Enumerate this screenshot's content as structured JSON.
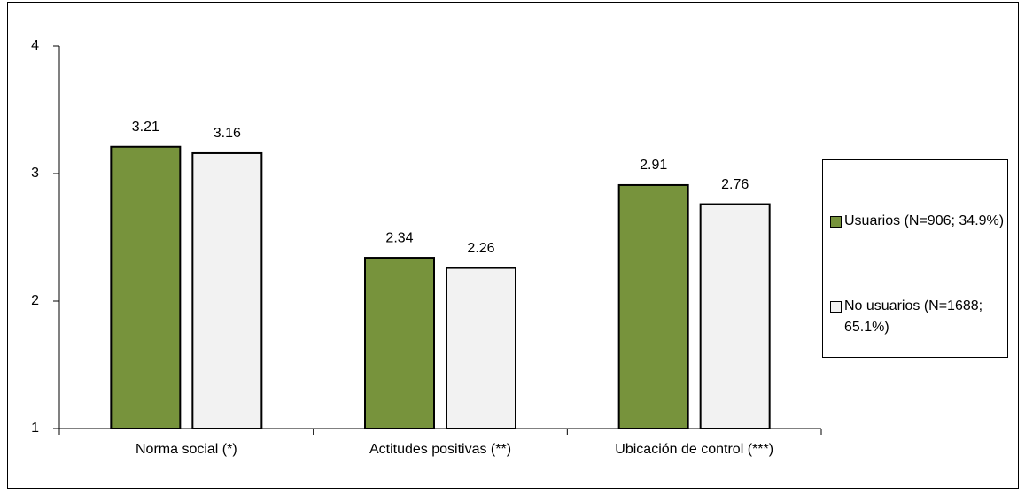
{
  "chart_data": {
    "type": "bar",
    "categories": [
      "Norma social (*)",
      "Actitudes positivas (**)",
      "Ubicación de control (***)"
    ],
    "series": [
      {
        "name": "Usuarios (N=906; 34.9%)",
        "color": "#77933c",
        "values": [
          3.21,
          2.34,
          2.91
        ]
      },
      {
        "name": "No usuarios (N=1688; 65.1%)",
        "color": "#f2f2f2",
        "values": [
          3.16,
          2.26,
          2.76
        ]
      }
    ],
    "ylim": [
      1,
      4
    ],
    "yticks": [
      1,
      2,
      3,
      4
    ],
    "grid": false,
    "legend": "right"
  }
}
